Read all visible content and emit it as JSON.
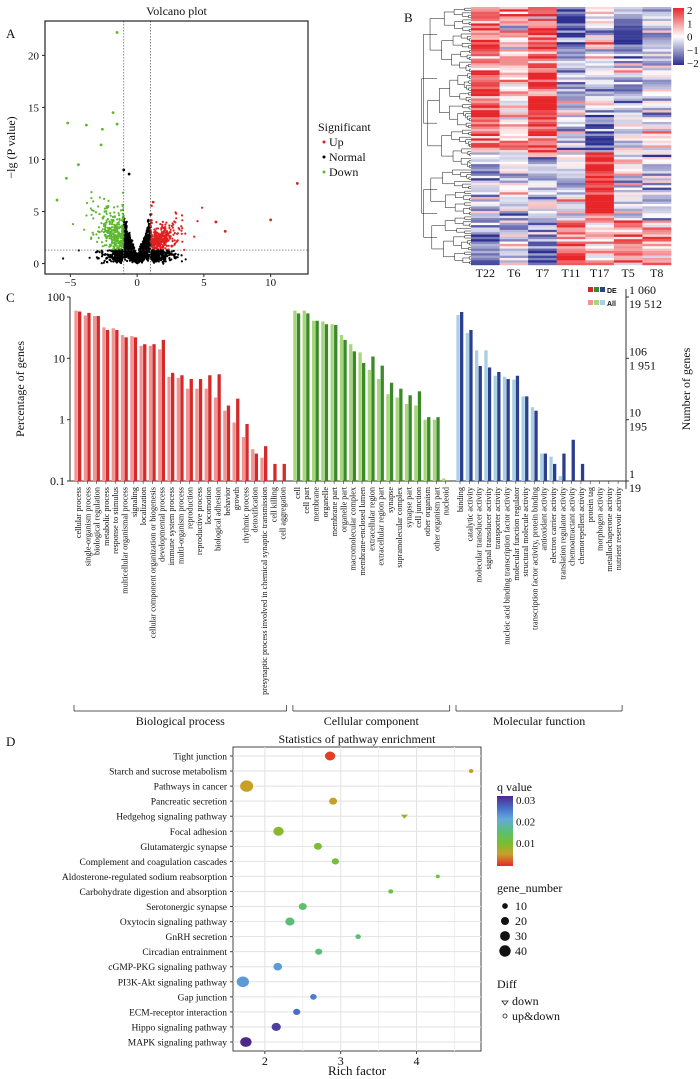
{
  "panels": {
    "a": "A",
    "b": "B",
    "c": "C",
    "d": "D"
  },
  "chart_data": [
    {
      "type": "scatter",
      "title": "Volcano plot",
      "xlabel": "",
      "ylabel": "−lg (P value)",
      "xlim": [
        -6.9,
        12.8
      ],
      "ylim": [
        -1,
        23.3
      ],
      "xticks": [
        -5,
        0,
        5,
        10
      ],
      "yticks": [
        0,
        5,
        10,
        15,
        20
      ],
      "thresholds": {
        "x": [
          -1,
          1
        ],
        "y": 1.3
      },
      "legend": {
        "title": "Significant",
        "placement": "right",
        "entries": [
          {
            "name": "Up",
            "color": "#e02020"
          },
          {
            "name": "Normal",
            "color": "#000000"
          },
          {
            "name": "Down",
            "color": "#5cb82e"
          }
        ]
      },
      "labeled_outliers": [
        {
          "x": -1.5,
          "y": 22.2,
          "group": "Down"
        },
        {
          "x": -1.8,
          "y": 14.5,
          "group": "Down"
        },
        {
          "x": -5.2,
          "y": 13.5,
          "group": "Down"
        },
        {
          "x": -3.8,
          "y": 13.3,
          "group": "Down"
        },
        {
          "x": -1.5,
          "y": 13.4,
          "group": "Down"
        },
        {
          "x": -2.6,
          "y": 12.9,
          "group": "Down"
        },
        {
          "x": -2.7,
          "y": 11.4,
          "group": "Down"
        },
        {
          "x": -4.4,
          "y": 9.5,
          "group": "Down"
        },
        {
          "x": -5.3,
          "y": 8.2,
          "group": "Down"
        },
        {
          "x": -6.0,
          "y": 6.1,
          "group": "Down"
        },
        {
          "x": -1.0,
          "y": 9.0,
          "group": "Normal"
        },
        {
          "x": -0.6,
          "y": 8.6,
          "group": "Normal"
        },
        {
          "x": 12.0,
          "y": 7.7,
          "group": "Up"
        },
        {
          "x": 10.0,
          "y": 4.2,
          "group": "Up"
        },
        {
          "x": 5.9,
          "y": 4.0,
          "group": "Up"
        },
        {
          "x": 6.6,
          "y": 3.1,
          "group": "Up"
        },
        {
          "x": 1.2,
          "y": 5.9,
          "group": "Up"
        }
      ]
    },
    {
      "type": "heatmap",
      "columns": [
        "T22",
        "T6",
        "T7",
        "T11",
        "T17",
        "T5",
        "T8"
      ],
      "color_scale": {
        "ticks": [
          2,
          1,
          0,
          -1,
          -2
        ],
        "tick_labels": [
          "2",
          "1",
          "0",
          "−1",
          "−2"
        ],
        "low": "#2b2f8f",
        "mid": "#ffffff",
        "high": "#e8262a"
      },
      "row_dendrogram": true
    },
    {
      "type": "bar",
      "ylabel": "Percentage of genes",
      "y2label": "Number of genes",
      "yscale": "log",
      "ylim": [
        0.1,
        100
      ],
      "yticks": [
        "100",
        "10",
        "1",
        "0.1"
      ],
      "y2ticks_de": [
        "1 060",
        "106",
        "10",
        "1"
      ],
      "y2ticks_all": [
        "19 512",
        "1 951",
        "195",
        "19"
      ],
      "legend": {
        "placement": "top-right",
        "entries": [
          "DE",
          "All"
        ]
      },
      "colors": {
        "bp": {
          "de": "#d42a2a",
          "all": "#f39494"
        },
        "cc": {
          "de": "#3a8a2a",
          "all": "#a8d67c"
        },
        "mf": {
          "de": "#2c3f8c",
          "all": "#a8cfe3"
        }
      },
      "groups": [
        {
          "key": "bp",
          "name": "Biological process",
          "categories": [
            {
              "label": "cellular process",
              "all": 60,
              "de": 58
            },
            {
              "label": "single-organism process",
              "all": 50,
              "de": 55
            },
            {
              "label": "biological regulation",
              "all": 49,
              "de": 49
            },
            {
              "label": "metabolic process",
              "all": 32,
              "de": 29
            },
            {
              "label": "response to stimulus",
              "all": 31,
              "de": 29
            },
            {
              "label": "multicellular organismal process",
              "all": 24,
              "de": 22
            },
            {
              "label": "signaling",
              "all": 23,
              "de": 22
            },
            {
              "label": "localization",
              "all": 16,
              "de": 17
            },
            {
              "label": "cellular component organization or biogenesis",
              "all": 16,
              "de": 17
            },
            {
              "label": "developmental process",
              "all": 14,
              "de": 20
            },
            {
              "label": "immune system process",
              "all": 5,
              "de": 5.8
            },
            {
              "label": "multi-organism process",
              "all": 4.8,
              "de": 5.3
            },
            {
              "label": "reproduction",
              "all": 3.2,
              "de": 4.6
            },
            {
              "label": "reproductive process",
              "all": 3.2,
              "de": 4.6
            },
            {
              "label": "locomotion",
              "all": 3.2,
              "de": 5.3
            },
            {
              "label": "biological adhesion",
              "all": 2.3,
              "de": 5.5
            },
            {
              "label": "behavior",
              "all": 1.4,
              "de": 1.7
            },
            {
              "label": "growth",
              "all": 0.9,
              "de": 2.2
            },
            {
              "label": "rhythmic process",
              "all": 0.52,
              "de": 0.85
            },
            {
              "label": "detoxification",
              "all": 0.33,
              "de": 0.28
            },
            {
              "label": "presynaptic process involved in chemical synaptic transmission",
              "all": 0.24,
              "de": 0.37
            },
            {
              "label": "cell killing",
              "all": 0.1,
              "de": 0.19
            },
            {
              "label": "cell aggregation",
              "all": 0,
              "de": 0.19
            }
          ]
        },
        {
          "key": "cc",
          "name": "Cellular component",
          "categories": [
            {
              "label": "cell",
              "all": 60,
              "de": 54
            },
            {
              "label": "cell part",
              "all": 60,
              "de": 54
            },
            {
              "label": "membrane",
              "all": 41,
              "de": 41
            },
            {
              "label": "organelle",
              "all": 40,
              "de": 36
            },
            {
              "label": "membrane part",
              "all": 36,
              "de": 35
            },
            {
              "label": "organelle part",
              "all": 24,
              "de": 20
            },
            {
              "label": "macromolecular complex",
              "all": 17,
              "de": 13
            },
            {
              "label": "membrane-enclosed lumen",
              "all": 12.5,
              "de": 8.4
            },
            {
              "label": "extracellular region",
              "all": 6.5,
              "de": 10.7
            },
            {
              "label": "extracellular region part",
              "all": 4.6,
              "de": 7.6
            },
            {
              "label": "synapse",
              "all": 2.6,
              "de": 4
            },
            {
              "label": "supramolecular complex",
              "all": 2.3,
              "de": 3.2
            },
            {
              "label": "synapse part",
              "all": 1.8,
              "de": 2.5
            },
            {
              "label": "cell junction",
              "all": 1.7,
              "de": 2.9
            },
            {
              "label": "other organism",
              "all": 1.0,
              "de": 1.1
            },
            {
              "label": "other organism part",
              "all": 1.0,
              "de": 1.1
            },
            {
              "label": "nucleoid",
              "all": 0.11,
              "de": 0
            }
          ]
        },
        {
          "key": "mf",
          "name": "Molecular function",
          "categories": [
            {
              "label": "binding",
              "all": 51,
              "de": 57
            },
            {
              "label": "catalytic activity",
              "all": 26,
              "de": 29
            },
            {
              "label": "molecular transducer activity",
              "all": 13.5,
              "de": 7.5
            },
            {
              "label": "signal transducer activity",
              "all": 13.5,
              "de": 7.1
            },
            {
              "label": "transporter activity",
              "all": 5.2,
              "de": 6
            },
            {
              "label": "nucleic acid binding transcription factor activity",
              "all": 5,
              "de": 4.6
            },
            {
              "label": "molecular function regulator",
              "all": 4.5,
              "de": 5.2
            },
            {
              "label": "structural molecule activity",
              "all": 2.4,
              "de": 2.4
            },
            {
              "label": "transcription factor activity, protein binding",
              "all": 1.6,
              "de": 1.4
            },
            {
              "label": "antioxidant activity",
              "all": 0.28,
              "de": 0.28
            },
            {
              "label": "electron carrier activity",
              "all": 0.25,
              "de": 0.19
            },
            {
              "label": "translation regulator activity",
              "all": 0.12,
              "de": 0.28
            },
            {
              "label": "chemoattractant activity",
              "all": 0,
              "de": 0.47
            },
            {
              "label": "chemorepellent activity",
              "all": 0,
              "de": 0.19
            },
            {
              "label": "protein tag",
              "all": 0,
              "de": 0
            },
            {
              "label": "morphogen activity",
              "all": 0,
              "de": 0
            },
            {
              "label": "metallochaperone activity",
              "all": 0,
              "de": 0
            },
            {
              "label": "nutrient reservoir activity",
              "all": 0,
              "de": 0
            }
          ]
        }
      ]
    },
    {
      "type": "scatter",
      "title": "Statistics of pathway enrichment",
      "xlabel": "Rich factor",
      "xlim": [
        1.58,
        4.85
      ],
      "xticks": [
        2,
        3,
        4
      ],
      "legend_q": {
        "title": "q value",
        "ticks": [
          "0.03",
          "0.02",
          "0.01"
        ]
      },
      "legend_size": {
        "title": "gene_number",
        "values": [
          10,
          20,
          30,
          40
        ]
      },
      "legend_shape": {
        "title": "Diff",
        "entries": [
          "down",
          "up&down"
        ]
      },
      "points": [
        {
          "pathway": "Tight junction",
          "rich": 2.86,
          "q": 0.002,
          "n": 25,
          "diff": "up&down"
        },
        {
          "pathway": "Starch and sucrose metabolism",
          "rich": 4.72,
          "q": 0.006,
          "n": 5,
          "diff": "up&down"
        },
        {
          "pathway": "Pathways in cancer",
          "rich": 1.76,
          "q": 0.006,
          "n": 40,
          "diff": "up&down"
        },
        {
          "pathway": "Pancreatic secretion",
          "rich": 2.9,
          "q": 0.006,
          "n": 15,
          "diff": "up&down"
        },
        {
          "pathway": "Hedgehog signaling pathway",
          "rich": 3.84,
          "q": 0.009,
          "n": 8,
          "diff": "down"
        },
        {
          "pathway": "Focal adhesion",
          "rich": 2.18,
          "q": 0.01,
          "n": 25,
          "diff": "up&down"
        },
        {
          "pathway": "Glutamatergic synapse",
          "rich": 2.7,
          "q": 0.011,
          "n": 15,
          "diff": "up&down"
        },
        {
          "pathway": "Complement and coagulation cascades",
          "rich": 2.93,
          "q": 0.012,
          "n": 12,
          "diff": "up&down"
        },
        {
          "pathway": "Aldosterone-regulated sodium reabsorption",
          "rich": 4.28,
          "q": 0.012,
          "n": 4,
          "diff": "up&down"
        },
        {
          "pathway": "Carbohydrate digestion and absorption",
          "rich": 3.66,
          "q": 0.013,
          "n": 6,
          "diff": "up&down"
        },
        {
          "pathway": "Serotonergic synapse",
          "rich": 2.5,
          "q": 0.016,
          "n": 15,
          "diff": "up&down"
        },
        {
          "pathway": "Oxytocin signaling pathway",
          "rich": 2.33,
          "q": 0.017,
          "n": 20,
          "diff": "up&down"
        },
        {
          "pathway": "GnRH secretion",
          "rich": 3.23,
          "q": 0.017,
          "n": 7,
          "diff": "up&down"
        },
        {
          "pathway": "Circadian entrainment",
          "rich": 2.71,
          "q": 0.017,
          "n": 12,
          "diff": "up&down"
        },
        {
          "pathway": "cGMP-PKG signaling pathway",
          "rich": 2.17,
          "q": 0.023,
          "n": 18,
          "diff": "up&down"
        },
        {
          "pathway": "PI3K-Akt signaling pathway",
          "rich": 1.71,
          "q": 0.023,
          "n": 35,
          "diff": "up&down"
        },
        {
          "pathway": "Gap junction",
          "rich": 2.64,
          "q": 0.025,
          "n": 10,
          "diff": "up&down"
        },
        {
          "pathway": "ECM-receptor interaction",
          "rich": 2.42,
          "q": 0.026,
          "n": 12,
          "diff": "up&down"
        },
        {
          "pathway": "Hippo signaling pathway",
          "rich": 2.15,
          "q": 0.03,
          "n": 20,
          "diff": "up&down"
        },
        {
          "pathway": "MAPK signaling pathway",
          "rich": 1.75,
          "q": 0.032,
          "n": 30,
          "diff": "up&down"
        }
      ]
    }
  ]
}
